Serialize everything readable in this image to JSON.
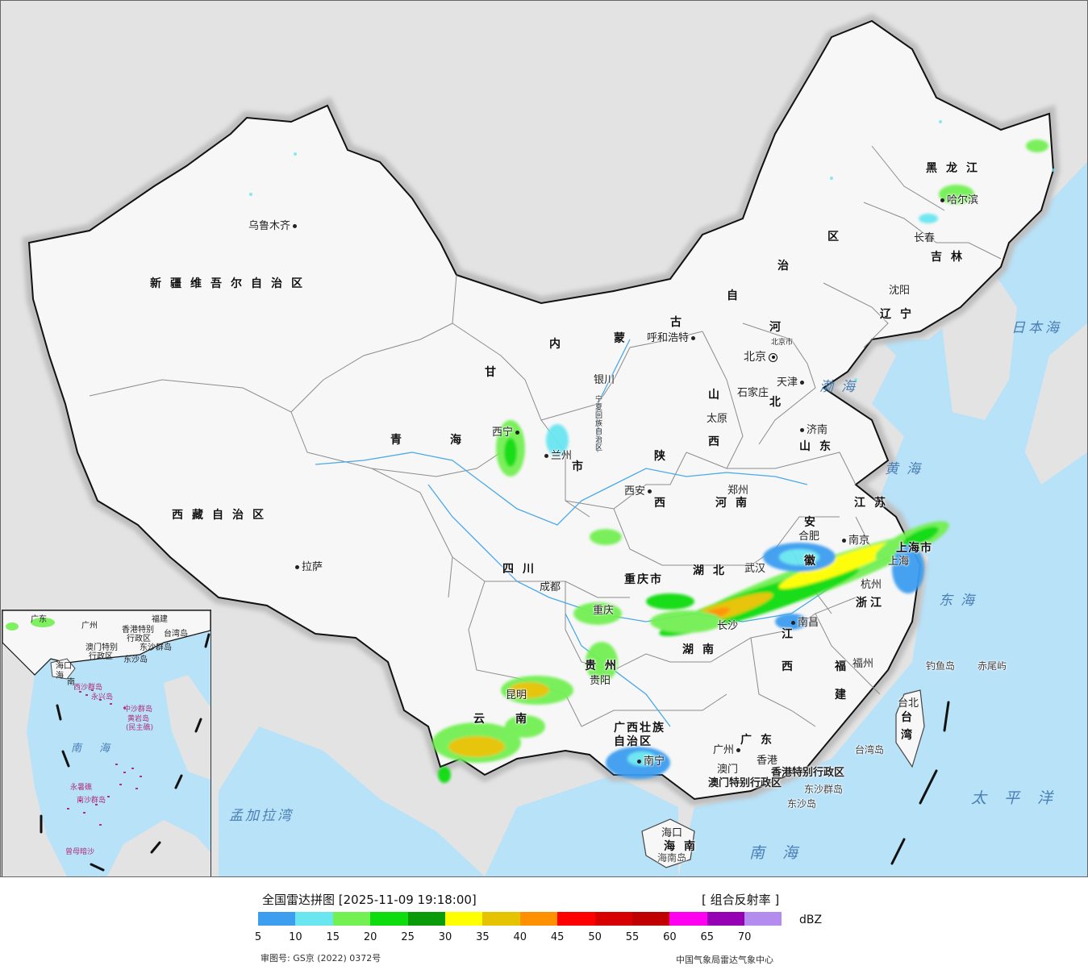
{
  "legend": {
    "title": "全国雷达拼图 [2025-11-09 19:18:00]",
    "product": "[ 组合反射率 ]",
    "unit": "dBZ",
    "approval": "审图号: GS京 (2022) 0372号",
    "org": "中国气象局雷达气象中心",
    "swatches": [
      "#3d9ef0",
      "#69e6f0",
      "#73f052",
      "#0fdc0f",
      "#0a9a0a",
      "#ffff00",
      "#e6c300",
      "#ff9000",
      "#ff0000",
      "#d60000",
      "#c00000",
      "#ff00f0",
      "#9600b4",
      "#b48cf0"
    ],
    "ticks": [
      "5",
      "10",
      "15",
      "20",
      "25",
      "30",
      "35",
      "40",
      "45",
      "50",
      "55",
      "60",
      "65",
      "70"
    ]
  },
  "regions": {
    "xinjiang": "新疆维吾尔自治区",
    "xizang": "西藏自治区",
    "qinghai1": "青",
    "qinghai2": "海",
    "gansu": "甘",
    "neimenggu": [
      "内",
      "蒙",
      "古",
      "自",
      "治",
      "区"
    ],
    "heilongjiang": "黑龙江",
    "jilin": "吉林",
    "liaoning": "辽宁",
    "hebei1": "河",
    "hebei2": "北",
    "shanxi1": "山",
    "shanxi2": "西",
    "shaanxi1": "陕",
    "shaanxi2": "西",
    "shandong": "山东",
    "henan": "河南",
    "jiangsu": "江苏",
    "anhui1": "安",
    "anhui2": "徽",
    "hubei": "湖北",
    "sichuan": "四川",
    "chongqing": "重庆市",
    "zhejiang": "浙江",
    "jiangxi1": "江",
    "jiangxi2": "西",
    "hunan": "湖南",
    "guizhou": "贵州",
    "fujian1": "福",
    "fujian2": "建",
    "yunnan1": "云",
    "yunnan2": "南",
    "guangxi1": "广西壮族",
    "guangxi2": "自治区",
    "guangdong": "广东",
    "hainan": "海南",
    "taiwan1": "台",
    "taiwan2": "湾",
    "ningxia": "宁夏回族自治区",
    "gansu_city": "市",
    "shanghai": "上海市",
    "hk": "香港特别行政区",
    "macau": "澳门特别行政区"
  },
  "cities": {
    "urumqi": "乌鲁木齐",
    "lhasa": "拉萨",
    "xining": "西宁",
    "lanzhou": "兰州",
    "yinchuan": "银川",
    "hohhot": "呼和浩特",
    "beijing": "北京",
    "beijing_city": "北京市",
    "tianjin": "天津",
    "shijiazhuang": "石家庄",
    "taiyuan": "太原",
    "jinan": "济南",
    "zhengzhou": "郑州",
    "xian": "西安",
    "chengdu": "成都",
    "chongqing": "重庆",
    "wuhan": "武汉",
    "hefei": "合肥",
    "nanjing": "南京",
    "shanghai": "上海",
    "hangzhou": "杭州",
    "nanchang": "南昌",
    "changsha": "长沙",
    "guiyang": "贵阳",
    "kunming": "昆明",
    "nanning": "南宁",
    "guangzhou": "广州",
    "aomen": "澳门",
    "xianggang": "香港",
    "fuzhou": "福州",
    "taibei": "台北",
    "haikou": "海口",
    "harbin": "哈尔滨",
    "changchun": "长春",
    "shenyang": "沈阳"
  },
  "seas": {
    "japan": "日本海",
    "bohai": "渤海",
    "yellow": "黄海",
    "east": "东海",
    "south": "南海",
    "pacific": "太平洋",
    "bengal": "孟加拉湾"
  },
  "islands": {
    "diaoyu": "钓鱼岛",
    "chiwei": "赤尾屿",
    "taiwan_island": "台湾岛",
    "dongsha": "东沙群岛",
    "dongsha_island": "东沙岛",
    "hainan_island": "海南岛"
  },
  "inset": {
    "guangdong": "广东",
    "guangxi": "广州",
    "fujian": "福建",
    "taiwan": "台湾岛",
    "hk": "香港特别",
    "hk2": "行政区",
    "macau": "澳门特别",
    "macau2": "行政区",
    "dongsha": "东沙群岛",
    "dongsha2": "东沙岛",
    "haikou": "海口",
    "hainan": "海",
    "hainan2": "南",
    "xisha": "西沙群岛",
    "yongxing": "永兴岛",
    "zhongsha": "中沙群岛",
    "huangyan": "黄岩岛",
    "huangyan2": "(民主礁)",
    "nansha": "南沙群岛",
    "yongshu": "永暑礁",
    "zengmu": "曾母暗沙",
    "sea1": "南",
    "sea2": "海"
  }
}
